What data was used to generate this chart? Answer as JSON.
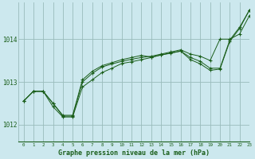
{
  "background_color": "#cce8ee",
  "grid_color": "#99bbbb",
  "line_color": "#1a5e1a",
  "title": "Graphe pression niveau de la mer (hPa)",
  "xlim": [
    -0.5,
    23
  ],
  "ylim": [
    1011.6,
    1014.85
  ],
  "yticks": [
    1012,
    1013,
    1014
  ],
  "xticks": [
    0,
    1,
    2,
    3,
    4,
    5,
    6,
    7,
    8,
    9,
    10,
    11,
    12,
    13,
    14,
    15,
    16,
    17,
    18,
    19,
    20,
    21,
    22,
    23
  ],
  "series": [
    [
      1012.55,
      1012.78,
      1012.78,
      1012.5,
      1012.22,
      1012.22,
      1013.05,
      1013.25,
      1013.38,
      1013.45,
      1013.52,
      1013.57,
      1013.62,
      1013.58,
      1013.63,
      1013.68,
      1013.72,
      1013.57,
      1013.48,
      1013.32,
      1013.32,
      1013.98,
      1014.28,
      1014.68
    ],
    [
      1012.55,
      1012.78,
      1012.78,
      1012.5,
      1012.2,
      1012.2,
      1013.0,
      1013.2,
      1013.35,
      1013.42,
      1013.48,
      1013.53,
      1013.57,
      1013.6,
      1013.65,
      1013.7,
      1013.75,
      1013.65,
      1013.6,
      1013.5,
      1014.0,
      1014.0,
      1014.12,
      1014.55
    ],
    [
      1012.55,
      1012.78,
      1012.78,
      1012.42,
      1012.18,
      1012.18,
      1012.88,
      1013.05,
      1013.22,
      1013.32,
      1013.43,
      1013.47,
      1013.52,
      1013.57,
      1013.63,
      1013.67,
      1013.72,
      1013.52,
      1013.42,
      1013.27,
      1013.3,
      1013.95,
      1014.25,
      1014.68
    ]
  ]
}
